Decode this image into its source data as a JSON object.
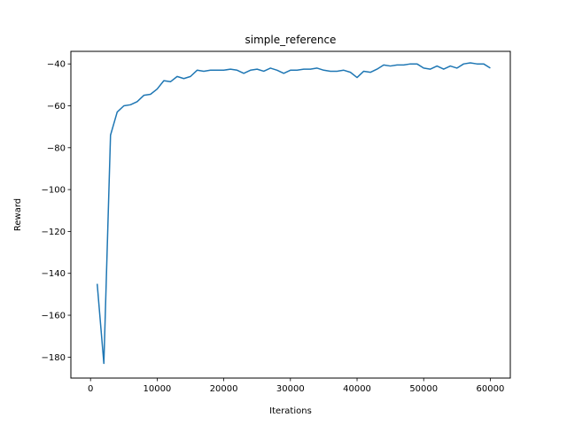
{
  "chart_data": {
    "type": "line",
    "title": "simple_reference",
    "xlabel": "Iterations",
    "ylabel": "Reward",
    "xlim": [
      -2950,
      63000
    ],
    "ylim": [
      -190,
      -34
    ],
    "xticks": [
      0,
      10000,
      20000,
      30000,
      40000,
      50000,
      60000
    ],
    "xtick_labels": [
      "0",
      "10000",
      "20000",
      "30000",
      "40000",
      "50000",
      "60000"
    ],
    "yticks": [
      -180,
      -160,
      -140,
      -120,
      -100,
      -80,
      -60,
      -40
    ],
    "ytick_labels": [
      "−180",
      "−160",
      "−140",
      "−120",
      "−100",
      "−80",
      "−60",
      "−40"
    ],
    "grid": false,
    "series": [
      {
        "color": "#1f77b4",
        "x": [
          1000,
          2000,
          3000,
          4000,
          5000,
          6000,
          7000,
          8000,
          9000,
          10000,
          11000,
          12000,
          13000,
          14000,
          15000,
          16000,
          17000,
          18000,
          19000,
          20000,
          21000,
          22000,
          23000,
          24000,
          25000,
          26000,
          27000,
          28000,
          29000,
          30000,
          31000,
          32000,
          33000,
          34000,
          35000,
          36000,
          37000,
          38000,
          39000,
          40000,
          41000,
          42000,
          43000,
          44000,
          45000,
          46000,
          47000,
          48000,
          49000,
          50000,
          51000,
          52000,
          53000,
          54000,
          55000,
          56000,
          57000,
          58000,
          59000,
          60000
        ],
        "y": [
          -145,
          -183,
          -74,
          -63,
          -60,
          -59.5,
          -58,
          -55,
          -54.5,
          -52,
          -48,
          -48.5,
          -46,
          -47,
          -46,
          -43,
          -43.5,
          -43,
          -43,
          -43,
          -42.5,
          -43,
          -44.5,
          -43,
          -42.5,
          -43.5,
          -42,
          -43,
          -44.5,
          -43,
          -43,
          -42.5,
          -42.5,
          -42,
          -43,
          -43.5,
          -43.5,
          -43,
          -44,
          -46.5,
          -43.5,
          -44,
          -42.5,
          -40.5,
          -41,
          -40.5,
          -40.5,
          -40,
          -40,
          -42,
          -42.5,
          -41,
          -42.5,
          -41,
          -42,
          -40,
          -39.5,
          -40,
          -40,
          -42
        ]
      }
    ]
  }
}
